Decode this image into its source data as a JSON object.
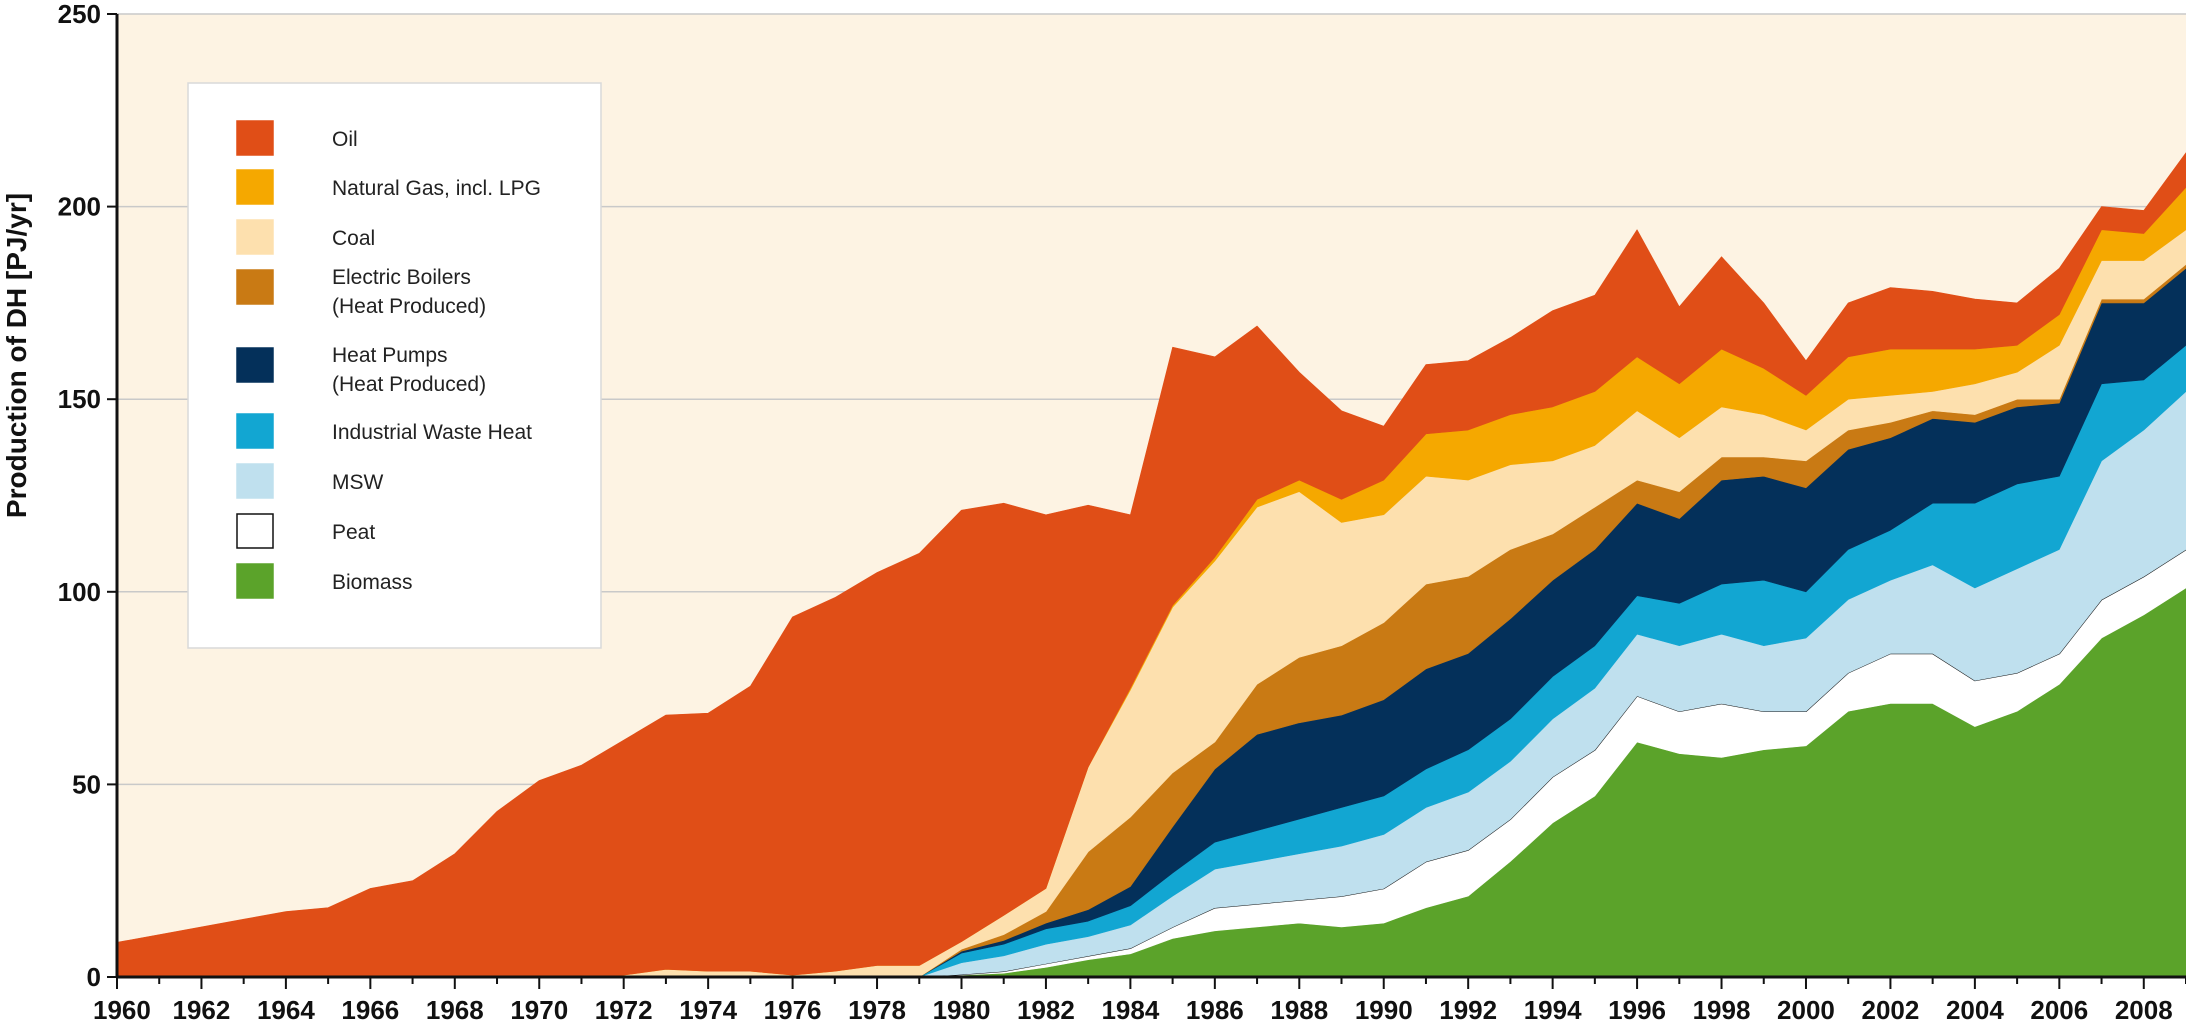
{
  "chart_data": {
    "type": "area",
    "stacked": true,
    "title": "",
    "xlabel": "",
    "ylabel": "Production of DH [PJ/yr]",
    "xlim": [
      1960,
      2009
    ],
    "ylim": [
      0,
      250
    ],
    "y_ticks": [
      "0",
      "50",
      "100",
      "150",
      "200",
      "250"
    ],
    "x_ticks": [
      "1960",
      "1962",
      "1964",
      "1966",
      "1968",
      "1970",
      "1972",
      "1974",
      "1976",
      "1978",
      "1980",
      "1982",
      "1984",
      "1986",
      "1988",
      "1990",
      "1992",
      "1994",
      "1996",
      "1998",
      "2000",
      "2002",
      "2004",
      "2006",
      "2008"
    ],
    "grid": "horizontal",
    "plot_background": "#fdf3e3",
    "legend_position": "upper-left",
    "legend": [
      {
        "lines": [
          "Oil"
        ],
        "color": "#e04e17"
      },
      {
        "lines": [
          "Natural Gas, incl. LPG"
        ],
        "color": "#f5a800"
      },
      {
        "lines": [
          "Coal"
        ],
        "color": "#fde0ae"
      },
      {
        "lines": [
          "Electric Boilers",
          "(Heat Produced)"
        ],
        "color": "#c97a14"
      },
      {
        "lines": [
          "Heat Pumps",
          "(Heat Produced)"
        ],
        "color": "#04305a"
      },
      {
        "lines": [
          "Industrial Waste Heat"
        ],
        "color": "#12a6d2"
      },
      {
        "lines": [
          "MSW"
        ],
        "color": "#bfe0ee"
      },
      {
        "lines": [
          "Peat"
        ],
        "color": "#ffffff"
      },
      {
        "lines": [
          "Biomass"
        ],
        "color": "#5ba32a"
      }
    ],
    "x": [
      1960,
      1961,
      1962,
      1963,
      1964,
      1965,
      1966,
      1967,
      1968,
      1969,
      1970,
      1971,
      1972,
      1973,
      1974,
      1975,
      1976,
      1977,
      1978,
      1979,
      1980,
      1981,
      1982,
      1983,
      1984,
      1985,
      1986,
      1987,
      1988,
      1989,
      1990,
      1991,
      1992,
      1993,
      1994,
      1995,
      1996,
      1997,
      1998,
      1999,
      2000,
      2001,
      2002,
      2003,
      2004,
      2005,
      2006,
      2007,
      2008,
      2009
    ],
    "series": [
      {
        "name": "Biomass",
        "color": "#5ba32a",
        "values": [
          0,
          0,
          0,
          0,
          0,
          0,
          0,
          0,
          0,
          0,
          0,
          0,
          0,
          0,
          0,
          0,
          0,
          0,
          0,
          0,
          0.5,
          1,
          2.5,
          4.5,
          6,
          10,
          12,
          13,
          14,
          13,
          14,
          18,
          21,
          30,
          40,
          47,
          61,
          58,
          57,
          59,
          60,
          69,
          71,
          71,
          65,
          69,
          76,
          88,
          94,
          101
        ]
      },
      {
        "name": "Peat",
        "color": "#ffffff",
        "values": [
          0,
          0,
          0,
          0,
          0,
          0,
          0,
          0,
          0,
          0,
          0,
          0,
          0,
          0,
          0,
          0,
          0,
          0,
          0,
          0,
          0.2,
          0.5,
          1,
          1,
          1.5,
          3,
          6,
          6,
          6,
          8,
          9,
          12,
          12,
          11,
          12,
          12,
          12,
          11,
          14,
          10,
          9,
          10,
          13,
          13,
          12,
          10,
          8,
          10,
          10,
          10
        ]
      },
      {
        "name": "MSW",
        "color": "#bfe0ee",
        "values": [
          0,
          0,
          0,
          0,
          0,
          0,
          0,
          0,
          0,
          0,
          0,
          0,
          0,
          0,
          0,
          0,
          0,
          0,
          0,
          0,
          3,
          4,
          5,
          5,
          6,
          8,
          10,
          11,
          12,
          13,
          14,
          14,
          15,
          15,
          15,
          16,
          16,
          17,
          18,
          17,
          19,
          19,
          19,
          23,
          24,
          27,
          27,
          36,
          38,
          41
        ]
      },
      {
        "name": "Industrial Waste Heat",
        "color": "#12a6d2",
        "values": [
          0,
          0,
          0,
          0,
          0,
          0,
          0,
          0,
          0,
          0,
          0,
          0,
          0,
          0,
          0,
          0,
          0,
          0,
          0,
          0,
          2.5,
          3,
          4,
          4,
          5,
          6,
          7,
          8,
          9,
          10,
          10,
          10,
          11,
          11,
          11,
          11,
          10,
          11,
          13,
          17,
          12,
          13,
          13,
          16,
          22,
          22,
          19,
          20,
          13,
          12
        ]
      },
      {
        "name": "Heat Pumps (Heat Produced)",
        "color": "#04305a",
        "values": [
          0,
          0,
          0,
          0,
          0,
          0,
          0,
          0,
          0,
          0,
          0,
          0,
          0,
          0,
          0,
          0,
          0,
          0,
          0,
          0,
          0.5,
          1,
          1.5,
          3,
          5,
          12,
          19,
          25,
          25,
          24,
          25,
          26,
          25,
          26,
          25,
          25,
          24,
          22,
          27,
          27,
          27,
          26,
          24,
          22,
          21,
          20,
          19,
          21,
          20,
          20
        ]
      },
      {
        "name": "Electric Boilers (Heat Produced)",
        "color": "#c97a14",
        "values": [
          0,
          0,
          0,
          0,
          0,
          0,
          0,
          0,
          0,
          0,
          0,
          0,
          0,
          0,
          0,
          0,
          0,
          0,
          0,
          0,
          0.5,
          1.5,
          3,
          15,
          18,
          14,
          7,
          13,
          17,
          18,
          20,
          22,
          20,
          18,
          12,
          11,
          6,
          7,
          6,
          5,
          7,
          5,
          4,
          2,
          2,
          2,
          1,
          1,
          1,
          1
        ]
      },
      {
        "name": "Coal",
        "color": "#fde0ae",
        "values": [
          0,
          0,
          0,
          0,
          0,
          0,
          0,
          0,
          0,
          0,
          0,
          0,
          0.5,
          2,
          1.5,
          1.5,
          0.5,
          1.5,
          3,
          3,
          2,
          5,
          6,
          22,
          33,
          43,
          47,
          46,
          43,
          32,
          28,
          28,
          25,
          22,
          19,
          16,
          18,
          14,
          13,
          11,
          8,
          8,
          7,
          5,
          8,
          7,
          14,
          10,
          10,
          9
        ]
      },
      {
        "name": "Natural Gas, incl. LPG",
        "color": "#f5a800",
        "values": [
          0,
          0,
          0,
          0,
          0,
          0,
          0,
          0,
          0,
          0,
          0,
          0,
          0,
          0,
          0,
          0,
          0,
          0,
          0,
          0,
          0,
          0,
          0,
          0,
          0.5,
          0.5,
          1,
          2,
          3,
          6,
          9,
          11,
          13,
          13,
          14,
          14,
          14,
          14,
          15,
          12,
          9,
          11,
          12,
          11,
          9,
          7,
          8,
          8,
          7,
          11
        ]
      },
      {
        "name": "Oil",
        "color": "#e04e17",
        "values": [
          9,
          11,
          13,
          15,
          17,
          18,
          23,
          25,
          32,
          43,
          51,
          55,
          61,
          66,
          67,
          74,
          93,
          97,
          102,
          107,
          112,
          107,
          97,
          68,
          45,
          67,
          52,
          45,
          28,
          23,
          14,
          18,
          18,
          20,
          25,
          25,
          33,
          20,
          24,
          17,
          9,
          14,
          16,
          15,
          13,
          11,
          12,
          6,
          6,
          9
        ]
      }
    ]
  }
}
